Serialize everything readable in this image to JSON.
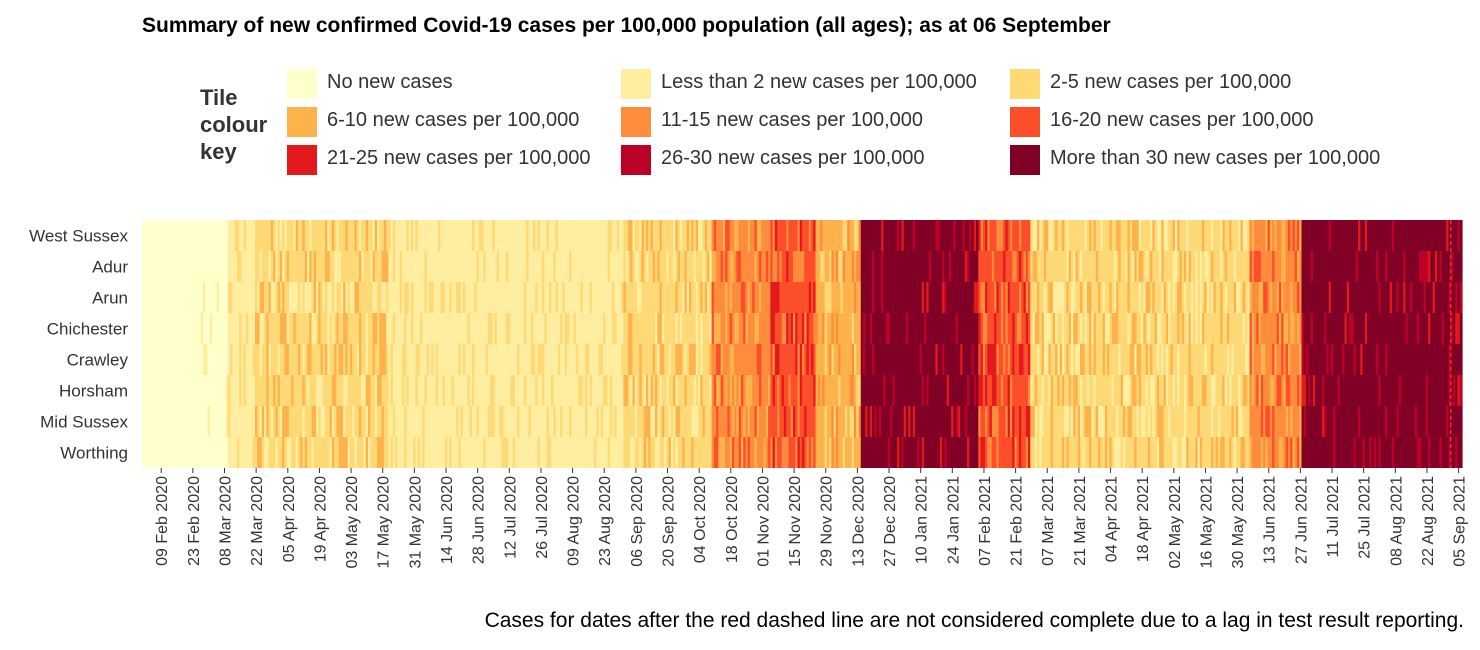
{
  "title": "Summary of new confirmed Covid-19 cases per 100,000 population (all ages); as at 06 September",
  "legend": {
    "title_lines": [
      "Tile",
      "colour",
      "key"
    ],
    "items": [
      {
        "label": "No new cases",
        "color": "#ffffcc"
      },
      {
        "label": "Less than 2 new cases per 100,000",
        "color": "#ffeda0"
      },
      {
        "label": "2-5 new cases per 100,000",
        "color": "#fed976"
      },
      {
        "label": "6-10 new cases per 100,000",
        "color": "#feb24c"
      },
      {
        "label": "11-15 new cases per 100,000",
        "color": "#fd8d3c"
      },
      {
        "label": "16-20 new cases per 100,000",
        "color": "#fc4e2a"
      },
      {
        "label": "21-25 new cases per 100,000",
        "color": "#e31a1c"
      },
      {
        "label": "26-30 new cases per 100,000",
        "color": "#bd0026"
      },
      {
        "label": "More than 30 new cases per 100,000",
        "color": "#800026"
      }
    ]
  },
  "footnote": "Cases for dates after the red dashed line are not considered complete due to a lag in test result reporting.",
  "chart_data": {
    "type": "heatmap",
    "title": "Summary of new confirmed Covid-19 cases per 100,000 population (all ages); as at 06 September",
    "rows": [
      "West Sussex",
      "Adur",
      "Arun",
      "Chichester",
      "Crawley",
      "Horsham",
      "Mid Sussex",
      "Worthing"
    ],
    "x_start_date": "2020-02-01",
    "x_end_date": "2021-09-06",
    "x_tick_labels": [
      "09 Feb 2020",
      "23 Feb 2020",
      "08 Mar 2020",
      "22 Mar 2020",
      "05 Apr 2020",
      "19 Apr 2020",
      "03 May 2020",
      "17 May 2020",
      "31 May 2020",
      "14 Jun 2020",
      "28 Jun 2020",
      "12 Jul 2020",
      "26 Jul 2020",
      "09 Aug 2020",
      "23 Aug 2020",
      "06 Sep 2020",
      "20 Sep 2020",
      "04 Oct 2020",
      "18 Oct 2020",
      "01 Nov 2020",
      "15 Nov 2020",
      "29 Nov 2020",
      "13 Dec 2020",
      "27 Dec 2020",
      "10 Jan 2021",
      "24 Jan 2021",
      "07 Feb 2021",
      "21 Feb 2021",
      "07 Mar 2021",
      "21 Mar 2021",
      "04 Apr 2021",
      "18 Apr 2021",
      "02 May 2021",
      "16 May 2021",
      "30 May 2021",
      "13 Jun 2021",
      "27 Jun 2021",
      "11 Jul 2021",
      "25 Jul 2021",
      "08 Aug 2021",
      "22 Aug 2021",
      "05 Sep 2021"
    ],
    "categories": [
      "No new cases",
      "Less than 2 new cases per 100,000",
      "2-5 new cases per 100,000",
      "6-10 new cases per 100,000",
      "11-15 new cases per 100,000",
      "16-20 new cases per 100,000",
      "21-25 new cases per 100,000",
      "26-30 new cases per 100,000",
      "More than 30 new cases per 100,000"
    ],
    "approx_category_timeline": [
      {
        "from": "2020-02-01",
        "to": "2020-03-10",
        "category_index": 0
      },
      {
        "from": "2020-03-10",
        "to": "2020-03-22",
        "category_index": 1
      },
      {
        "from": "2020-03-22",
        "to": "2020-05-20",
        "category_index": 2
      },
      {
        "from": "2020-05-20",
        "to": "2020-09-01",
        "category_index": 1
      },
      {
        "from": "2020-09-01",
        "to": "2020-10-10",
        "category_index": 2
      },
      {
        "from": "2020-10-10",
        "to": "2020-11-05",
        "category_index": 4
      },
      {
        "from": "2020-11-05",
        "to": "2020-11-25",
        "category_index": 5
      },
      {
        "from": "2020-11-25",
        "to": "2020-12-15",
        "category_index": 3
      },
      {
        "from": "2020-12-15",
        "to": "2021-02-05",
        "category_index": 8
      },
      {
        "from": "2021-02-05",
        "to": "2021-02-28",
        "category_index": 5
      },
      {
        "from": "2021-02-28",
        "to": "2021-06-05",
        "category_index": 2
      },
      {
        "from": "2021-06-05",
        "to": "2021-06-28",
        "category_index": 4
      },
      {
        "from": "2021-06-28",
        "to": "2021-09-06",
        "category_index": 8
      }
    ],
    "grid": false,
    "legend_position": "top"
  }
}
